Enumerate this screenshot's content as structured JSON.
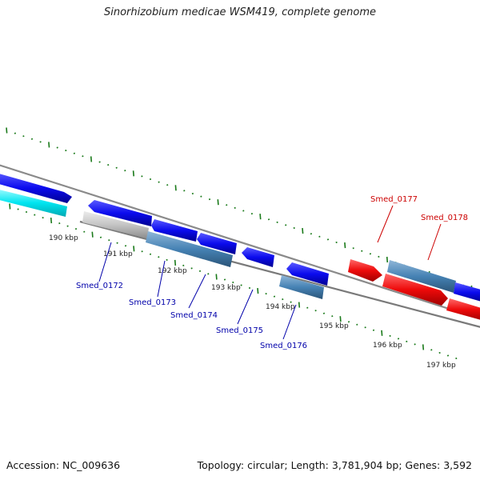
{
  "title": "Sinorhizobium medicae WSM419, complete genome",
  "footer": {
    "accession": "Accession: NC_009636",
    "topology": "Topology: circular; Length: 3,781,904 bp; Genes: 3,592"
  },
  "colors": {
    "forward": "#0b0bee",
    "reverse_steel": "#4682b4",
    "cyan": "#00e5f0",
    "gray_gene": "#bdbdbd",
    "red": "#ee0a0a",
    "backbone": "#777777",
    "ticks": "#1a7a1a",
    "label_blue": "#0000aa",
    "label_red": "#cc0000"
  },
  "ruler": [
    "190 kbp",
    "191 kbp",
    "192 kbp",
    "193 kbp",
    "194 kbp",
    "195 kbp",
    "196 kbp",
    "197 kbp"
  ],
  "gene_labels": [
    {
      "text": "Smed_0172",
      "color": "blue"
    },
    {
      "text": "Smed_0173",
      "color": "blue"
    },
    {
      "text": "Smed_0174",
      "color": "blue"
    },
    {
      "text": "Smed_0175",
      "color": "blue"
    },
    {
      "text": "Smed_0176",
      "color": "blue"
    },
    {
      "text": "Smed_0177",
      "color": "red"
    },
    {
      "text": "Smed_0178",
      "color": "red"
    }
  ]
}
